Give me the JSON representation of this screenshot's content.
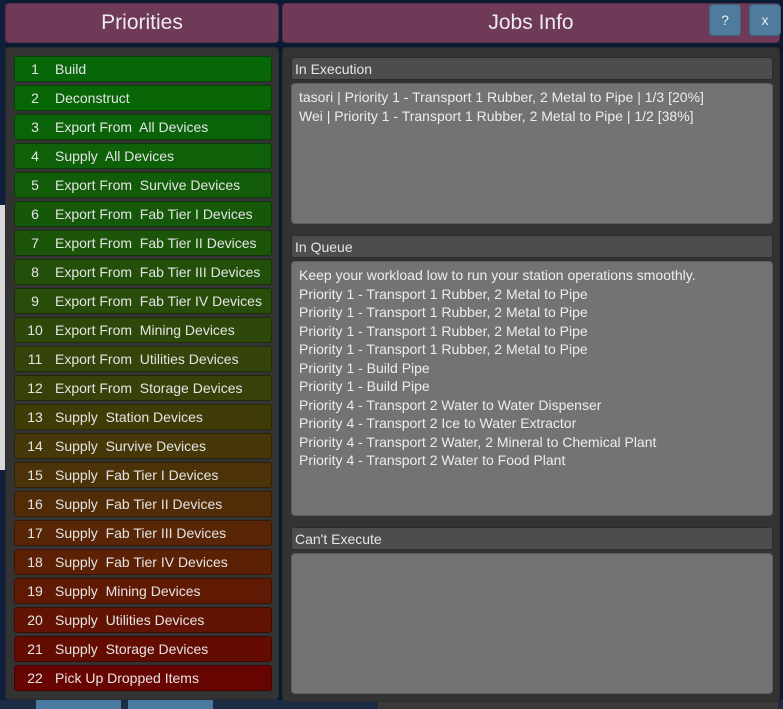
{
  "priorities": {
    "title": "Priorities",
    "items": [
      {
        "num": "1",
        "label": "Build",
        "color": "#076607"
      },
      {
        "num": "2",
        "label": "Deconstruct",
        "color": "#086607"
      },
      {
        "num": "3",
        "label": "Export From  All Devices",
        "color": "#0b6309"
      },
      {
        "num": "4",
        "label": "Supply  All Devices",
        "color": "#0e6009"
      },
      {
        "num": "5",
        "label": "Export From  Survive Devices",
        "color": "#125c09"
      },
      {
        "num": "6",
        "label": "Export From  Fab Tier I Devices",
        "color": "#16580a"
      },
      {
        "num": "7",
        "label": "Export From  Fab Tier II Devices",
        "color": "#1c540a"
      },
      {
        "num": "8",
        "label": "Export From  Fab Tier III Devices",
        "color": "#22500a"
      },
      {
        "num": "9",
        "label": "Export From  Fab Tier IV Devices",
        "color": "#284c0a"
      },
      {
        "num": "10",
        "label": "Export From  Mining Devices",
        "color": "#2e480a"
      },
      {
        "num": "11",
        "label": "Export From  Utilities Devices",
        "color": "#34440a"
      },
      {
        "num": "12",
        "label": "Export From  Storage Devices",
        "color": "#3a400a"
      },
      {
        "num": "13",
        "label": "Supply  Station Devices",
        "color": "#403c08"
      },
      {
        "num": "14",
        "label": "Supply  Survive Devices",
        "color": "#463808"
      },
      {
        "num": "15",
        "label": "Supply  Fab Tier I Devices",
        "color": "#4c3208"
      },
      {
        "num": "16",
        "label": "Supply  Fab Tier II Devices",
        "color": "#522c07"
      },
      {
        "num": "17",
        "label": "Supply  Fab Tier III Devices",
        "color": "#582606"
      },
      {
        "num": "18",
        "label": "Supply  Fab Tier IV Devices",
        "color": "#5c2005"
      },
      {
        "num": "19",
        "label": "Supply  Mining Devices",
        "color": "#601a04"
      },
      {
        "num": "20",
        "label": "Supply  Utilities Devices",
        "color": "#621303"
      },
      {
        "num": "21",
        "label": "Supply  Storage Devices",
        "color": "#640c02"
      },
      {
        "num": "22",
        "label": "Pick Up Dropped Items",
        "color": "#670502"
      }
    ]
  },
  "jobs": {
    "title": "Jobs Info",
    "help_label": "?",
    "close_label": "x",
    "in_execution": {
      "header": "In Execution",
      "lines": [
        "tasori | Priority 1 - Transport 1 Rubber, 2 Metal to Pipe | 1/3 [20%]",
        "Wei | Priority 1 - Transport 1 Rubber, 2 Metal to Pipe | 1/2 [38%]"
      ]
    },
    "in_queue": {
      "header": "In Queue",
      "lines": [
        "Keep your workload low to run your station operations smoothly.",
        "Priority 1 - Transport 1 Rubber, 2 Metal to Pipe",
        "Priority 1 - Transport 1 Rubber, 2 Metal to Pipe",
        "Priority 1 - Transport 1 Rubber, 2 Metal to Pipe",
        "Priority 1 - Transport 1 Rubber, 2 Metal to Pipe",
        "Priority 1 - Build Pipe",
        "Priority 1 - Build Pipe",
        "Priority 4 - Transport 2 Water to Water Dispenser",
        "Priority 4 - Transport 2 Ice to Water Extractor",
        "Priority 4 - Transport 2 Water, 2 Mineral to Chemical Plant",
        "Priority 4 - Transport 2 Water to Food Plant"
      ]
    },
    "cant_execute": {
      "header": "Can't Execute",
      "lines": []
    }
  }
}
